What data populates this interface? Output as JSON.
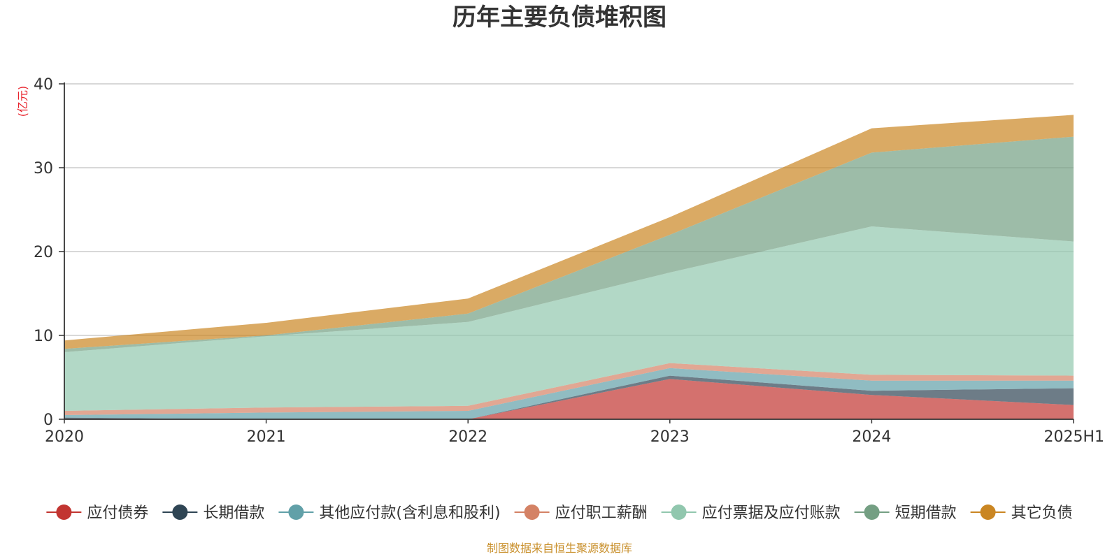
{
  "chart_data": {
    "type": "area",
    "stacked": true,
    "title": "历年主要负债堆积图",
    "unit": "(亿元)",
    "categories": [
      "2020",
      "2021",
      "2022",
      "2023",
      "2024",
      "2025H1"
    ],
    "ylim": [
      0,
      40
    ],
    "yticks": [
      0,
      10,
      20,
      30,
      40
    ],
    "grid": true,
    "legend_position": "bottom",
    "source": "制图数据来自恒生聚源数据库",
    "series": [
      {
        "name": "应付债券",
        "color": "#c23531",
        "values": [
          0,
          0,
          0,
          4.8,
          2.9,
          1.7
        ]
      },
      {
        "name": "长期借款",
        "color": "#2f4554",
        "values": [
          0.2,
          0,
          0,
          0.4,
          0.5,
          2.0
        ]
      },
      {
        "name": "其他应付款(含利息和股利)",
        "color": "#61a0a8",
        "values": [
          0.3,
          0.8,
          1.0,
          0.9,
          1.2,
          0.9
        ]
      },
      {
        "name": "应付职工薪酬",
        "color": "#d48265",
        "values": [
          0.5,
          0.6,
          0.6,
          0.6,
          0.7,
          0.6
        ]
      },
      {
        "name": "应付票据及应付账款",
        "color": "#91c7ae",
        "values": [
          7.0,
          8.5,
          10.0,
          10.8,
          17.7,
          16.0
        ]
      },
      {
        "name": "短期借款",
        "color": "#749f83",
        "values": [
          0.4,
          0.1,
          1.0,
          4.5,
          8.8,
          12.5
        ]
      },
      {
        "name": "其它负债",
        "color": "#ca8622",
        "values": [
          1.0,
          1.5,
          1.8,
          2.1,
          2.9,
          2.6
        ]
      }
    ]
  }
}
